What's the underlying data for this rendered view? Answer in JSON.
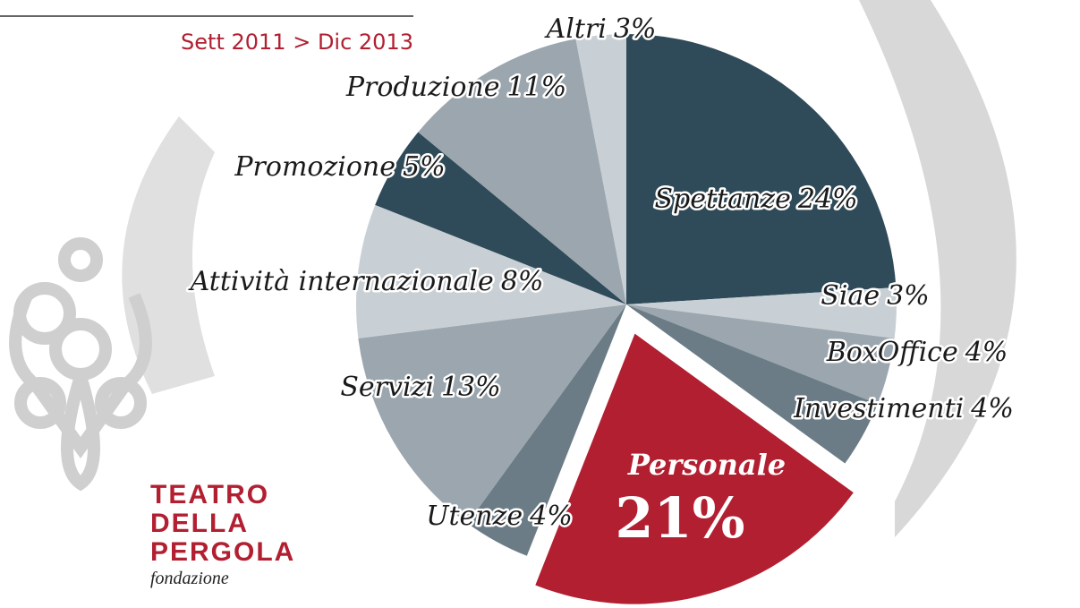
{
  "chart_data": {
    "type": "pie",
    "subtitle": "Sett 2011 > Dic 2013",
    "categories": [
      "Spettanze",
      "Siae",
      "BoxOffice",
      "Investimenti",
      "Personale",
      "Utenze",
      "Servizi",
      "Attività internazionale",
      "Promozione",
      "Produzione",
      "Altri"
    ],
    "values": [
      24,
      3,
      4,
      4,
      21,
      4,
      13,
      8,
      5,
      11,
      3
    ],
    "value_labels": [
      "24%",
      "3%",
      "4%",
      "4%",
      "21%",
      "4%",
      "13%",
      "8%",
      "5%",
      "11%",
      "3%"
    ],
    "colors": [
      "#2f4a58",
      "#c9d0d5",
      "#9ba6ae",
      "#6b7c86",
      "#b21f31",
      "#6b7c86",
      "#9ba6ae",
      "#c9d0d5",
      "#2f4a58",
      "#9ba6ae",
      "#c9d0d5"
    ],
    "exploded": [
      4
    ]
  },
  "logo": {
    "lines": [
      "TEATRO",
      "DELLA",
      "PERGOLA"
    ],
    "sub": "fondazione"
  }
}
